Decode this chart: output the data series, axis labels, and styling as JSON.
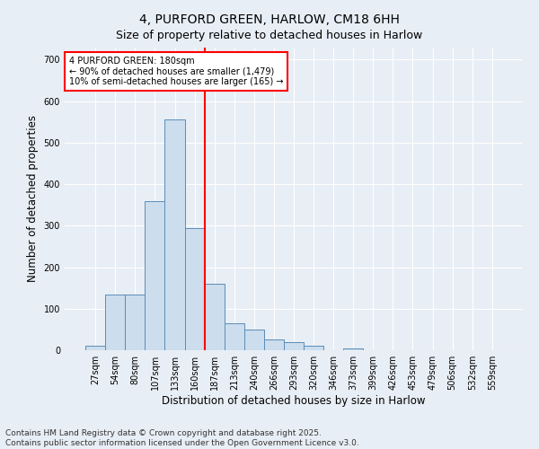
{
  "title1": "4, PURFORD GREEN, HARLOW, CM18 6HH",
  "title2": "Size of property relative to detached houses in Harlow",
  "xlabel": "Distribution of detached houses by size in Harlow",
  "ylabel": "Number of detached properties",
  "categories": [
    "27sqm",
    "54sqm",
    "80sqm",
    "107sqm",
    "133sqm",
    "160sqm",
    "187sqm",
    "213sqm",
    "240sqm",
    "266sqm",
    "293sqm",
    "320sqm",
    "346sqm",
    "373sqm",
    "399sqm",
    "426sqm",
    "453sqm",
    "479sqm",
    "506sqm",
    "532sqm",
    "559sqm"
  ],
  "values": [
    10,
    135,
    135,
    360,
    555,
    295,
    160,
    65,
    50,
    25,
    20,
    10,
    0,
    5,
    0,
    0,
    0,
    0,
    0,
    0,
    0
  ],
  "bar_color": "#ccdded",
  "bar_edge_color": "#5b8db8",
  "vline_index": 6,
  "vline_color": "red",
  "ylim": [
    0,
    730
  ],
  "yticks": [
    0,
    100,
    200,
    300,
    400,
    500,
    600,
    700
  ],
  "annotation_text": "4 PURFORD GREEN: 180sqm\n← 90% of detached houses are smaller (1,479)\n10% of semi-detached houses are larger (165) →",
  "annotation_box_color": "white",
  "annotation_box_edge": "red",
  "footer1": "Contains HM Land Registry data © Crown copyright and database right 2025.",
  "footer2": "Contains public sector information licensed under the Open Government Licence v3.0.",
  "background_color": "#e8eef5",
  "plot_bg_color": "#e8eef5",
  "grid_color": "white",
  "title_fontsize": 10,
  "tick_fontsize": 7,
  "label_fontsize": 8.5,
  "footer_fontsize": 6.5
}
